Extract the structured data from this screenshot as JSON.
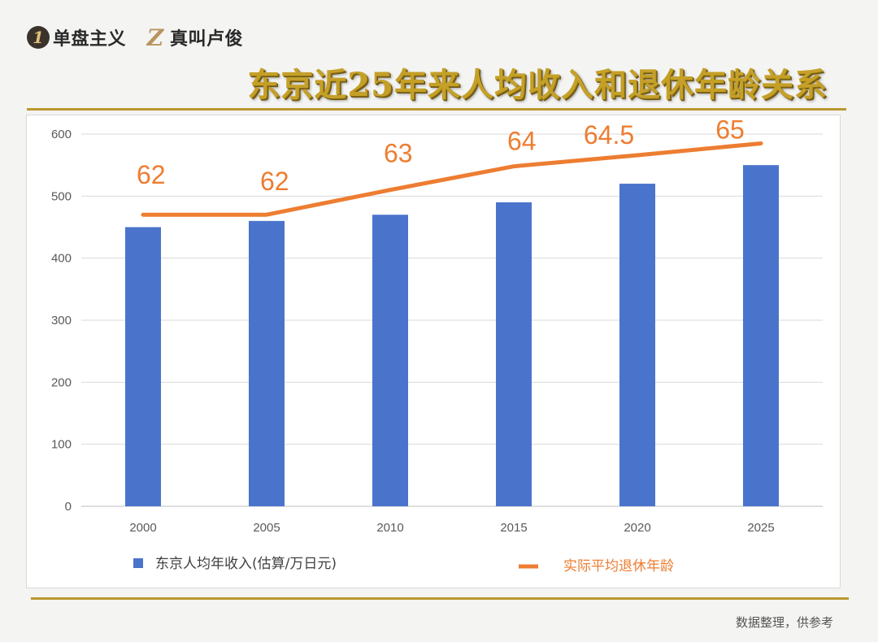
{
  "brand": {
    "items": [
      {
        "icon": "one-circle-icon",
        "glyph": "1",
        "label": "单盘主义"
      },
      {
        "icon": "z-letter-icon",
        "glyph": "Z",
        "label": "真叫卢俊"
      }
    ]
  },
  "title": "东京近25年来人均收入和退休年龄关系",
  "footer": "数据整理，供参考",
  "colors": {
    "bar": "#4a74cc",
    "line": "#ed7d31",
    "title": "#c5a028",
    "rule": "#b9982f",
    "grid": "#d9d9d9"
  },
  "chart_data": {
    "type": "bar+line",
    "categories": [
      "2000",
      "2005",
      "2010",
      "2015",
      "2020",
      "2025"
    ],
    "ylim": [
      0,
      600
    ],
    "yticks": [
      0,
      100,
      200,
      300,
      400,
      500,
      600
    ],
    "grid": true,
    "legend_position": "bottom",
    "series": [
      {
        "name": "东京人均年收入(估算/万日元)",
        "type": "bar",
        "values": [
          450,
          460,
          470,
          490,
          520,
          550
        ]
      },
      {
        "name": "实际平均退休年龄",
        "type": "line",
        "values": [
          62,
          62,
          63,
          64,
          64.5,
          65
        ],
        "labels": [
          "62",
          "62",
          "63",
          "64",
          "64.5",
          "65"
        ],
        "plot_values": [
          470,
          470,
          510,
          548,
          566,
          585
        ]
      }
    ]
  }
}
